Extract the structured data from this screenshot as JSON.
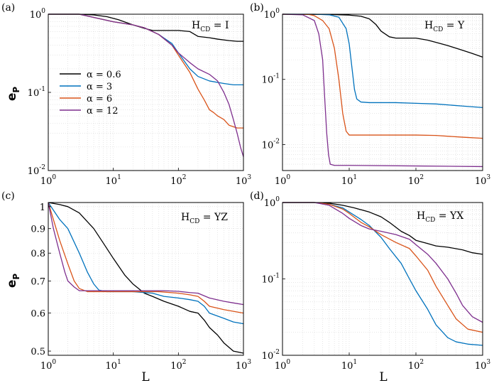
{
  "chart_data": [
    {
      "type": "line",
      "panel": "(a)",
      "annotation": {
        "base": "H",
        "sub": "CD",
        "rest": " = I"
      },
      "xscale": "log",
      "yscale": "log",
      "xlim": [
        1,
        1000
      ],
      "ylim": [
        0.01,
        1
      ],
      "xlabel": "",
      "ylabel": "e_P",
      "xticks": [
        {
          "b": "10",
          "e": "0",
          "v": 1
        },
        {
          "b": "10",
          "e": "1",
          "v": 10
        },
        {
          "b": "10",
          "e": "2",
          "v": 100
        },
        {
          "b": "10",
          "e": "3",
          "v": 1000
        }
      ],
      "yticks": [
        {
          "b": "10",
          "e": "-2",
          "v": 0.01
        },
        {
          "b": "10",
          "e": "-1",
          "v": 0.1
        },
        {
          "b": "10",
          "e": "0",
          "v": 1
        }
      ],
      "legend": {
        "position": "center-left",
        "entries": [
          "α = 0.6",
          "α = 3",
          "α = 6",
          "α = 12"
        ]
      },
      "series": [
        {
          "name": "α = 0.6",
          "color": "#000000",
          "x": [
            1,
            3,
            5,
            8,
            12,
            20,
            30,
            40,
            60,
            100,
            150,
            200,
            300,
            400,
            600,
            800,
            1000
          ],
          "y": [
            1.0,
            1.0,
            0.98,
            0.93,
            0.85,
            0.73,
            0.66,
            0.62,
            0.62,
            0.62,
            0.6,
            0.52,
            0.5,
            0.48,
            0.46,
            0.45,
            0.45
          ]
        },
        {
          "name": "α = 3",
          "color": "#0072BD",
          "x": [
            1,
            3,
            6,
            10,
            20,
            30,
            50,
            80,
            100,
            150,
            200,
            300,
            500,
            700,
            1000
          ],
          "y": [
            1.0,
            1.0,
            0.88,
            0.8,
            0.73,
            0.67,
            0.55,
            0.42,
            0.32,
            0.2,
            0.16,
            0.14,
            0.13,
            0.125,
            0.125
          ]
        },
        {
          "name": "α = 6",
          "color": "#D95319",
          "x": [
            1,
            3,
            6,
            10,
            20,
            30,
            50,
            80,
            100,
            150,
            200,
            250,
            300,
            350,
            400,
            500,
            600,
            800,
            1000
          ],
          "y": [
            1.0,
            1.0,
            0.88,
            0.8,
            0.73,
            0.67,
            0.55,
            0.4,
            0.3,
            0.18,
            0.11,
            0.08,
            0.06,
            0.055,
            0.05,
            0.045,
            0.038,
            0.035,
            0.035
          ]
        },
        {
          "name": "α = 12",
          "color": "#7E2F8E",
          "x": [
            1,
            3,
            6,
            10,
            20,
            30,
            50,
            80,
            100,
            150,
            200,
            300,
            400,
            500,
            600,
            700,
            800,
            900,
            1000
          ],
          "y": [
            1.0,
            1.0,
            0.88,
            0.8,
            0.73,
            0.67,
            0.55,
            0.4,
            0.32,
            0.24,
            0.2,
            0.17,
            0.14,
            0.1,
            0.07,
            0.045,
            0.03,
            0.02,
            0.015
          ]
        }
      ]
    },
    {
      "type": "line",
      "panel": "(b)",
      "annotation": {
        "base": "H",
        "sub": "CD",
        "rest": " = Y"
      },
      "xscale": "log",
      "yscale": "log",
      "xlim": [
        1,
        1000
      ],
      "ylim": [
        0.004,
        1
      ],
      "xlabel": "",
      "ylabel": "",
      "xticks": [
        {
          "b": "10",
          "e": "0",
          "v": 1
        },
        {
          "b": "10",
          "e": "1",
          "v": 10
        },
        {
          "b": "10",
          "e": "2",
          "v": 100
        },
        {
          "b": "10",
          "e": "3",
          "v": 1000
        }
      ],
      "yticks": [
        {
          "b": "10",
          "e": "-2",
          "v": 0.01
        },
        {
          "b": "10",
          "e": "-1",
          "v": 0.1
        },
        {
          "b": "10",
          "e": "0",
          "v": 1
        }
      ],
      "series": [
        {
          "name": "α = 0.6",
          "color": "#000000",
          "x": [
            1,
            5,
            10,
            15,
            20,
            25,
            30,
            40,
            50,
            70,
            100,
            150,
            200,
            300,
            500,
            700,
            1000
          ],
          "y": [
            1.0,
            0.99,
            0.97,
            0.93,
            0.85,
            0.7,
            0.55,
            0.45,
            0.43,
            0.43,
            0.43,
            0.4,
            0.37,
            0.33,
            0.28,
            0.25,
            0.22
          ]
        },
        {
          "name": "α = 3",
          "color": "#0072BD",
          "x": [
            1,
            3,
            5,
            7,
            9,
            10,
            11,
            12,
            13,
            15,
            20,
            50,
            100,
            200,
            500,
            1000
          ],
          "y": [
            1.0,
            1.0,
            0.98,
            0.9,
            0.6,
            0.35,
            0.15,
            0.07,
            0.05,
            0.045,
            0.044,
            0.044,
            0.043,
            0.042,
            0.039,
            0.037
          ]
        },
        {
          "name": "α = 6",
          "color": "#D95319",
          "x": [
            1,
            2.5,
            3,
            4,
            5,
            6,
            7,
            8,
            9,
            10,
            20,
            50,
            100,
            200,
            500,
            1000
          ],
          "y": [
            1.0,
            0.99,
            0.95,
            0.8,
            0.6,
            0.3,
            0.1,
            0.03,
            0.016,
            0.014,
            0.014,
            0.014,
            0.014,
            0.0138,
            0.013,
            0.0125
          ]
        },
        {
          "name": "α = 12",
          "color": "#7E2F8E",
          "x": [
            1,
            2,
            3,
            3.5,
            4,
            4.3,
            4.6,
            4.9,
            5.2,
            6,
            10,
            100,
            1000
          ],
          "y": [
            1.0,
            0.98,
            0.8,
            0.5,
            0.2,
            0.05,
            0.015,
            0.007,
            0.005,
            0.0048,
            0.0048,
            0.0047,
            0.0046
          ]
        }
      ]
    },
    {
      "type": "line",
      "panel": "(c)",
      "annotation": {
        "base": "H",
        "sub": "CD",
        "rest": " = YZ"
      },
      "xscale": "log",
      "yscale": "log",
      "xlim": [
        1,
        1000
      ],
      "ylim": [
        0.49,
        1.02
      ],
      "xlabel": "L",
      "ylabel": "e_P",
      "xticks": [
        {
          "b": "10",
          "e": "0",
          "v": 1
        },
        {
          "b": "10",
          "e": "1",
          "v": 10
        },
        {
          "b": "10",
          "e": "2",
          "v": 100
        },
        {
          "b": "10",
          "e": "3",
          "v": 1000
        }
      ],
      "yticks": [
        {
          "b": "0.5",
          "e": "",
          "v": 0.5
        },
        {
          "b": "0.6",
          "e": "",
          "v": 0.6
        },
        {
          "b": "0.7",
          "e": "",
          "v": 0.7
        },
        {
          "b": "0.8",
          "e": "",
          "v": 0.8
        },
        {
          "b": "0.9",
          "e": "",
          "v": 0.9
        },
        {
          "b": "1",
          "e": "",
          "v": 1
        }
      ],
      "series": [
        {
          "name": "α = 0.6",
          "color": "#000000",
          "x": [
            1,
            1.5,
            2,
            3,
            5,
            7,
            10,
            15,
            20,
            30,
            40,
            60,
            100,
            150,
            200,
            250,
            300,
            400,
            500,
            700,
            1000
          ],
          "y": [
            1.02,
            1.01,
            1.0,
            0.97,
            0.9,
            0.84,
            0.78,
            0.72,
            0.69,
            0.66,
            0.65,
            0.635,
            0.62,
            0.605,
            0.6,
            0.58,
            0.56,
            0.54,
            0.52,
            0.5,
            0.495
          ]
        },
        {
          "name": "α = 3",
          "color": "#0072BD",
          "x": [
            1,
            1.5,
            2,
            3,
            4,
            5,
            6,
            8,
            10,
            20,
            40,
            60,
            100,
            150,
            200,
            250,
            300,
            500,
            700,
            1000
          ],
          "y": [
            1.02,
            0.94,
            0.9,
            0.8,
            0.73,
            0.69,
            0.67,
            0.665,
            0.665,
            0.665,
            0.66,
            0.65,
            0.645,
            0.64,
            0.635,
            0.62,
            0.6,
            0.585,
            0.575,
            0.57
          ]
        },
        {
          "name": "α = 6",
          "color": "#D95319",
          "x": [
            1,
            1.5,
            2,
            2.5,
            3,
            4,
            5,
            10,
            20,
            50,
            100,
            150,
            200,
            250,
            300,
            500,
            1000
          ],
          "y": [
            1.02,
            0.85,
            0.76,
            0.7,
            0.675,
            0.665,
            0.665,
            0.665,
            0.665,
            0.665,
            0.66,
            0.655,
            0.65,
            0.635,
            0.62,
            0.61,
            0.6
          ]
        },
        {
          "name": "α = 12",
          "color": "#7E2F8E",
          "x": [
            1,
            1.2,
            1.5,
            1.8,
            2,
            2.5,
            3,
            5,
            10,
            30,
            60,
            100,
            150,
            200,
            300,
            500,
            700,
            1000
          ],
          "y": [
            1.02,
            0.9,
            0.8,
            0.73,
            0.7,
            0.68,
            0.668,
            0.668,
            0.668,
            0.668,
            0.668,
            0.666,
            0.662,
            0.66,
            0.645,
            0.635,
            0.63,
            0.625
          ]
        }
      ]
    },
    {
      "type": "line",
      "panel": "(d)",
      "annotation": {
        "base": "H",
        "sub": "CD",
        "rest": " = YX"
      },
      "xscale": "log",
      "yscale": "log",
      "xlim": [
        1,
        1000
      ],
      "ylim": [
        0.01,
        1
      ],
      "xlabel": "L",
      "ylabel": "",
      "xticks": [
        {
          "b": "10",
          "e": "0",
          "v": 1
        },
        {
          "b": "10",
          "e": "1",
          "v": 10
        },
        {
          "b": "10",
          "e": "2",
          "v": 100
        },
        {
          "b": "10",
          "e": "3",
          "v": 1000
        }
      ],
      "yticks": [
        {
          "b": "10",
          "e": "-2",
          "v": 0.01
        },
        {
          "b": "10",
          "e": "-1",
          "v": 0.1
        },
        {
          "b": "10",
          "e": "0",
          "v": 1
        }
      ],
      "series": [
        {
          "name": "α = 0.6",
          "color": "#000000",
          "x": [
            1,
            3,
            5,
            8,
            12,
            20,
            30,
            40,
            60,
            80,
            100,
            150,
            200,
            300,
            500,
            700,
            1000
          ],
          "y": [
            1.0,
            1.0,
            0.98,
            0.92,
            0.85,
            0.75,
            0.65,
            0.55,
            0.42,
            0.37,
            0.32,
            0.29,
            0.27,
            0.26,
            0.24,
            0.22,
            0.21
          ]
        },
        {
          "name": "α = 3",
          "color": "#0072BD",
          "x": [
            1,
            3,
            5,
            8,
            10,
            15,
            20,
            30,
            40,
            60,
            80,
            100,
            150,
            200,
            300,
            400,
            600,
            1000
          ],
          "y": [
            1.0,
            1.0,
            0.95,
            0.85,
            0.75,
            0.6,
            0.5,
            0.35,
            0.25,
            0.16,
            0.1,
            0.07,
            0.04,
            0.025,
            0.017,
            0.015,
            0.014,
            0.0135
          ]
        },
        {
          "name": "α = 6",
          "color": "#D95319",
          "x": [
            1,
            3,
            5,
            8,
            10,
            15,
            20,
            30,
            50,
            80,
            100,
            150,
            200,
            300,
            400,
            600,
            1000
          ],
          "y": [
            1.0,
            1.0,
            0.95,
            0.82,
            0.72,
            0.55,
            0.48,
            0.38,
            0.3,
            0.25,
            0.2,
            0.13,
            0.08,
            0.045,
            0.03,
            0.022,
            0.02
          ]
        },
        {
          "name": "α = 12",
          "color": "#7E2F8E",
          "x": [
            1,
            3,
            5,
            8,
            10,
            15,
            20,
            30,
            50,
            80,
            100,
            150,
            200,
            300,
            400,
            500,
            700,
            1000
          ],
          "y": [
            1.0,
            1.0,
            0.92,
            0.72,
            0.62,
            0.5,
            0.45,
            0.42,
            0.38,
            0.33,
            0.28,
            0.21,
            0.16,
            0.1,
            0.065,
            0.045,
            0.032,
            0.027
          ]
        }
      ]
    }
  ]
}
